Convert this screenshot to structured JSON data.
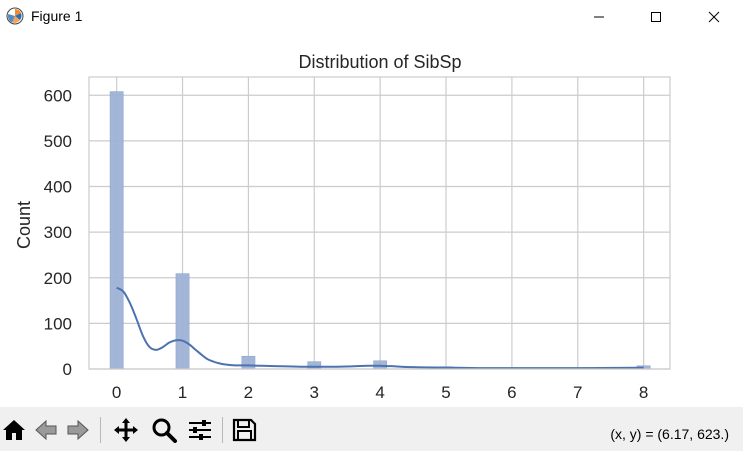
{
  "window": {
    "title": "Figure 1"
  },
  "toolbar": {
    "coords": "(x, y) = (6.17, 623.)",
    "buttons": [
      "home-icon",
      "back-icon",
      "forward-icon",
      "pan-icon",
      "zoom-icon",
      "configure-subplots-icon",
      "save-icon"
    ]
  },
  "colors": {
    "bar": "#9fb3d6",
    "bar_edge": "#8ca3cc",
    "kde": "#4c72b0",
    "grid": "#cccccc"
  },
  "chart_data": {
    "type": "bar",
    "title": "Distribution of SibSp",
    "xlabel": "",
    "ylabel": "Count",
    "xlim": [
      -0.42,
      8.4
    ],
    "ylim": [
      0,
      640
    ],
    "xticks": [
      0,
      1,
      2,
      3,
      4,
      5,
      6,
      7,
      8
    ],
    "yticks": [
      0,
      100,
      200,
      300,
      400,
      500,
      600
    ],
    "grid": true,
    "bin_width": 0.2,
    "bins": [
      {
        "x": 0,
        "count": 608
      },
      {
        "x": 1,
        "count": 209
      },
      {
        "x": 2,
        "count": 28
      },
      {
        "x": 3,
        "count": 16
      },
      {
        "x": 4,
        "count": 18
      },
      {
        "x": 5,
        "count": 5
      },
      {
        "x": 8,
        "count": 7
      }
    ],
    "kde": {
      "x": [
        0,
        0.1,
        0.2,
        0.3,
        0.4,
        0.5,
        0.6,
        0.7,
        0.8,
        0.9,
        1.0,
        1.1,
        1.2,
        1.3,
        1.4,
        1.6,
        1.8,
        2.0,
        2.2,
        2.5,
        2.8,
        3.0,
        3.3,
        3.6,
        3.8,
        4.0,
        4.2,
        4.5,
        5.0,
        5.5,
        6.0,
        7.0,
        8.0
      ],
      "y": [
        178,
        170,
        145,
        110,
        72,
        48,
        42,
        48,
        58,
        63,
        62,
        54,
        42,
        30,
        20,
        11,
        8,
        8,
        7,
        6,
        5,
        5,
        5,
        6,
        7,
        7,
        6,
        4,
        3,
        2,
        2,
        2,
        3
      ]
    }
  }
}
